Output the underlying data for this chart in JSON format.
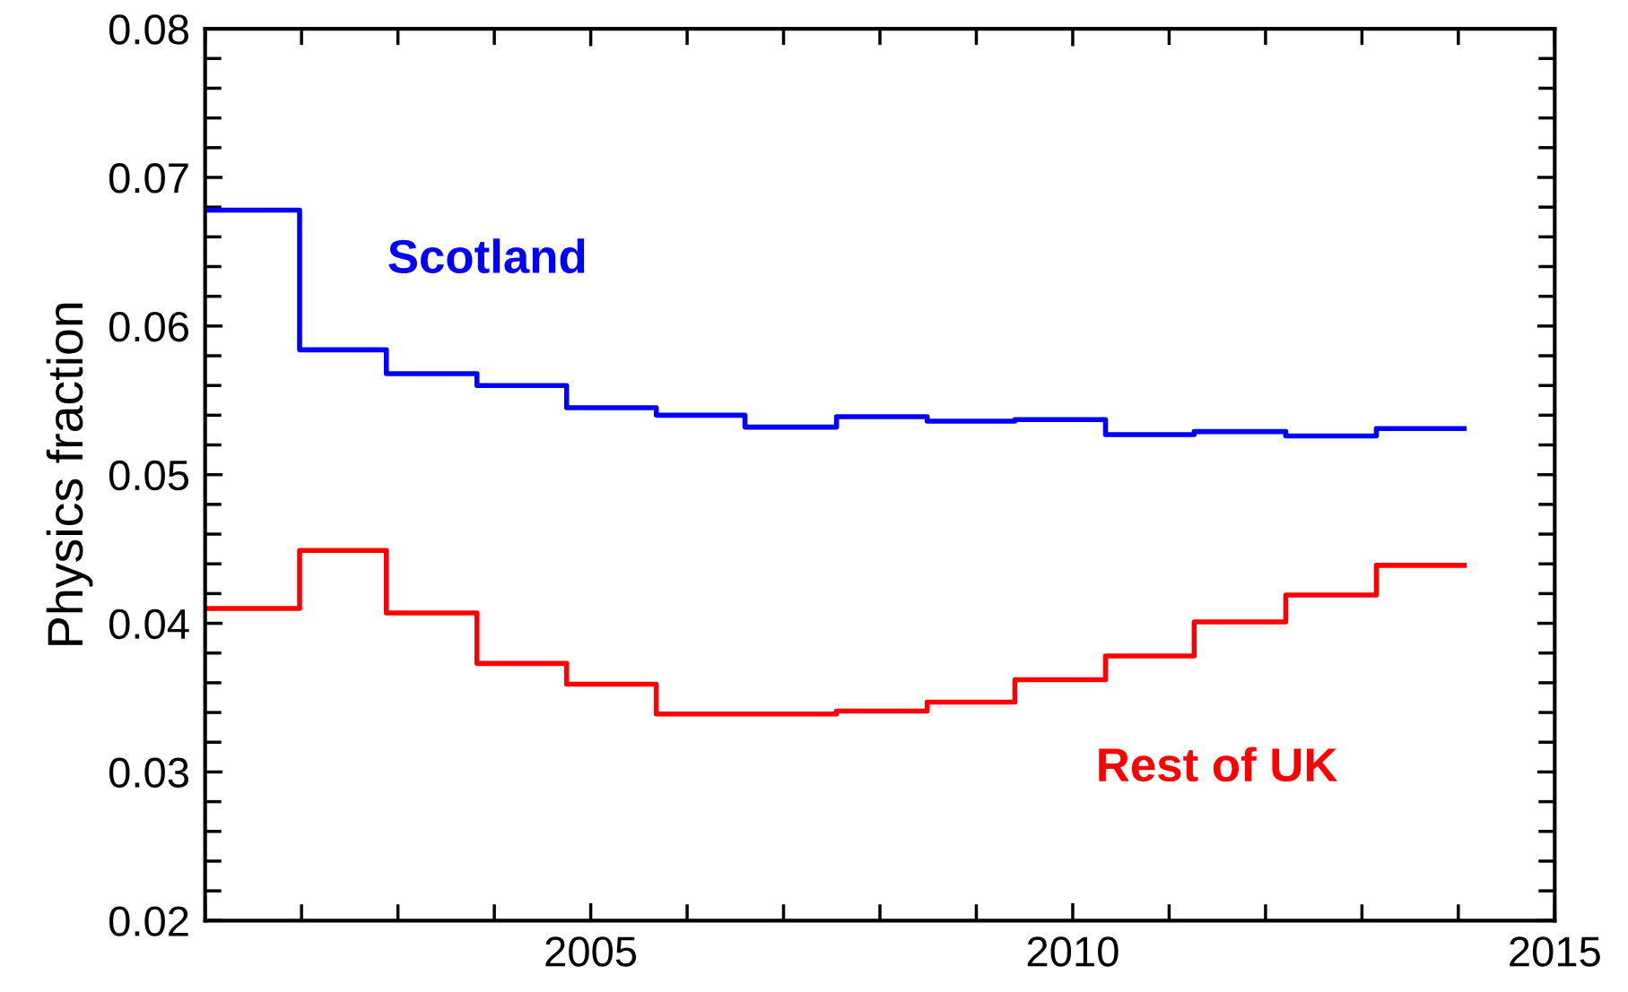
{
  "chart_data": {
    "type": "step",
    "ylabel": "Physics fraction",
    "xlim": [
      2001,
      2015
    ],
    "xticks": [
      2005,
      2010,
      2015
    ],
    "ylim": [
      0.02,
      0.08
    ],
    "yticks": [
      0.02,
      0.03,
      0.04,
      0.05,
      0.06,
      0.07,
      0.08
    ],
    "grid": false,
    "legend": false,
    "line_style": "solid",
    "marker": "none",
    "x": [
      2001,
      2001.98,
      2002.88,
      2003.82,
      2004.75,
      2005.68,
      2006.6,
      2007.55,
      2008.49,
      2009.4,
      2010.34,
      2011.26,
      2012.21,
      2013.15,
      2014.06
    ],
    "series": [
      {
        "name": "Scotland",
        "color": "#0000ff",
        "values": [
          0.0678,
          0.0584,
          0.0568,
          0.056,
          0.0545,
          0.054,
          0.0532,
          0.0539,
          0.0536,
          0.0537,
          0.0527,
          0.0529,
          0.0526,
          0.0531,
          0.0531
        ]
      },
      {
        "name": "Rest of UK",
        "color": "#ff0000",
        "values": [
          0.041,
          0.0449,
          0.0407,
          0.0373,
          0.0359,
          0.0339,
          0.0339,
          0.0341,
          0.0347,
          0.0362,
          0.0378,
          0.0401,
          0.0419,
          0.0439,
          0.0439
        ]
      }
    ]
  }
}
